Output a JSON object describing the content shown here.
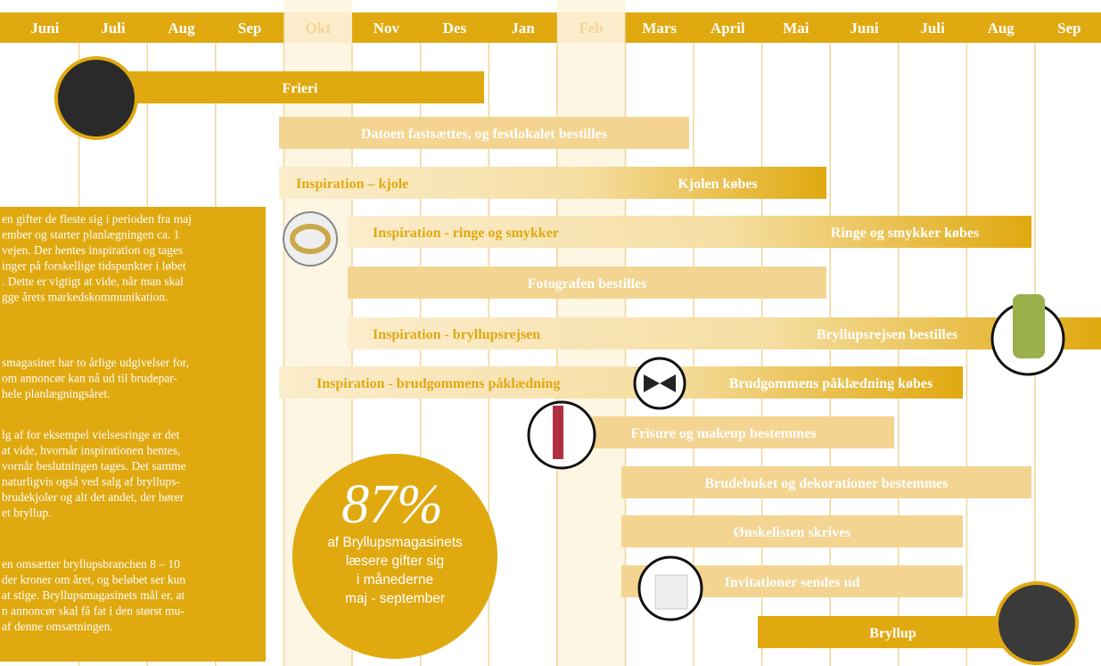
{
  "months": [
    "Juni",
    "Juli",
    "Aug",
    "Sep",
    "Okt",
    "Nov",
    "Des",
    "Jan",
    "Feb",
    "Mars",
    "April",
    "Mai",
    "Juni",
    "Juli",
    "Aug",
    "Sep"
  ],
  "tasks": [
    {
      "label": "Frieri"
    },
    {
      "label": "Datoen fastsættes, og festlokalet bestilles"
    },
    {
      "inspiration": "Inspiration – kjole",
      "label": "Kjolen købes"
    },
    {
      "inspiration": "Inspiration - ringe og smykker",
      "label": "Ringe og smykker købes"
    },
    {
      "label": "Fotografen bestilles"
    },
    {
      "inspiration": "Inspiration - bryllupsrejsen",
      "label": "Bryllupsrejsen bestilles"
    },
    {
      "inspiration": "Inspiration - brudgommens påklædning",
      "label": "Brudgommens påklædning købes"
    },
    {
      "label": "Frisure og makeup bestemmes"
    },
    {
      "label": "Brudebuket og dekorationer bestemmes"
    },
    {
      "label": "Ønskelisten skrives"
    },
    {
      "label": "Invitationer sendes ud"
    },
    {
      "label": "Bryllup"
    }
  ],
  "text_box": {
    "paragraphs": [
      [
        "en gifter de fleste sig i perioden fra maj",
        "ember og starter planlægningen ca. 1",
        "vejen. Der hentes inspiration og tages",
        "inger på forskellige tidspunkter i løbet",
        ". Dette er vigtigt at vide, når man skal",
        "gge årets markedskommunikation."
      ],
      [
        "smagasinet har to årlige udgivelser for,",
        "om annoncør kan nå ud til brudepar-",
        "hele planlægningsåret."
      ],
      [
        "lg af for eksempel vielsesringe er det",
        "at vide, hvornår inspirationen hentes,",
        "vornår beslutningen tages. Det samme",
        "naturligvis også ved salg af bryllups-",
        "brudekjoler og alt det andet, der hører",
        "et bryllup."
      ],
      [
        "en omsætter bryllupsbranchen 8 – 10",
        "der kroner om året, og beløbet ser kun",
        "at stige. Bryllupsmagasinets mål er, at",
        "n annoncør skal få fat i den størst mu-",
        "af denne omsætningen."
      ]
    ]
  },
  "stat": {
    "value": "87%",
    "lines": [
      "af Bryllupsmagasinets",
      "læsere gifter sig",
      "i månederne",
      "maj - september"
    ]
  }
}
